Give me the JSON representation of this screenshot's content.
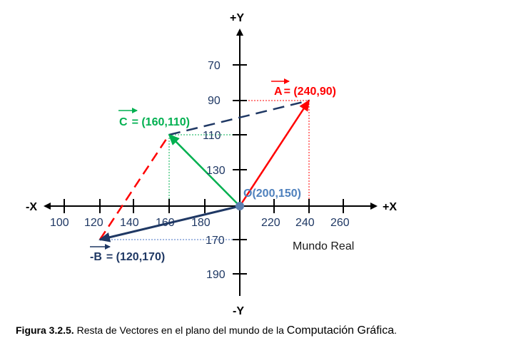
{
  "axes": {
    "pos_y": "+Y",
    "neg_y": "-Y",
    "pos_x": "+X",
    "neg_x": "-X"
  },
  "y_ticks": [
    "70",
    "90",
    "110",
    "130",
    "170",
    "190"
  ],
  "x_ticks": [
    "100",
    "120",
    "140",
    "160",
    "180",
    "220",
    "240",
    "260"
  ],
  "vectors": {
    "a": {
      "name": "A",
      "label": "= (240,90)"
    },
    "c": {
      "name": "C",
      "label": "= (160,110)"
    },
    "neg_b": {
      "name": "-B",
      "label": "= (120,170)"
    }
  },
  "origin_label": "O(200,150)",
  "world_label": "Mundo Real",
  "caption": {
    "figure": "Figura 3.2.5.",
    "text": " Resta de Vectores en el plano del mundo de la ",
    "emph": "Computación Gráfica",
    "end": "."
  },
  "colors": {
    "vector_a": "#ff0000",
    "vector_c": "#00b050",
    "vector_neg_b": "#1f3864",
    "dashed_red": "#ff0000",
    "dashed_navy": "#1f3864",
    "tick_text": "#1f3864",
    "origin_dot": "#5b7fb1"
  }
}
